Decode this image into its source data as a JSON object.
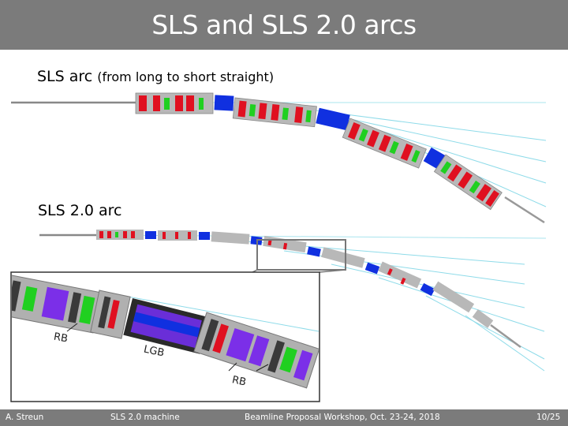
{
  "slide": {
    "title": "SLS and SLS 2.0 arcs",
    "arc1_label": "SLS arc",
    "arc1_sub": "(from long to short straight)",
    "arc2_label": "SLS 2.0 arc",
    "inset_labels": {
      "rb_left": "RB",
      "lgb": "LGB",
      "rb_bottom": "RB"
    }
  },
  "footer": {
    "author": "A. Streun",
    "topic": "SLS 2.0 machine",
    "event": "Beamline Proposal Workshop, Oct. 23-24, 2018",
    "page": "10/25"
  },
  "colors": {
    "header_bg": "#7b7b7b",
    "dipole_blue": "#1030e0",
    "quad_red": "#e01020",
    "sext_green": "#20d020",
    "girder_gray": "#b8b8b8",
    "beamline_cyan": "#7fd8e8",
    "bend_purple": "#7b2fe8"
  }
}
